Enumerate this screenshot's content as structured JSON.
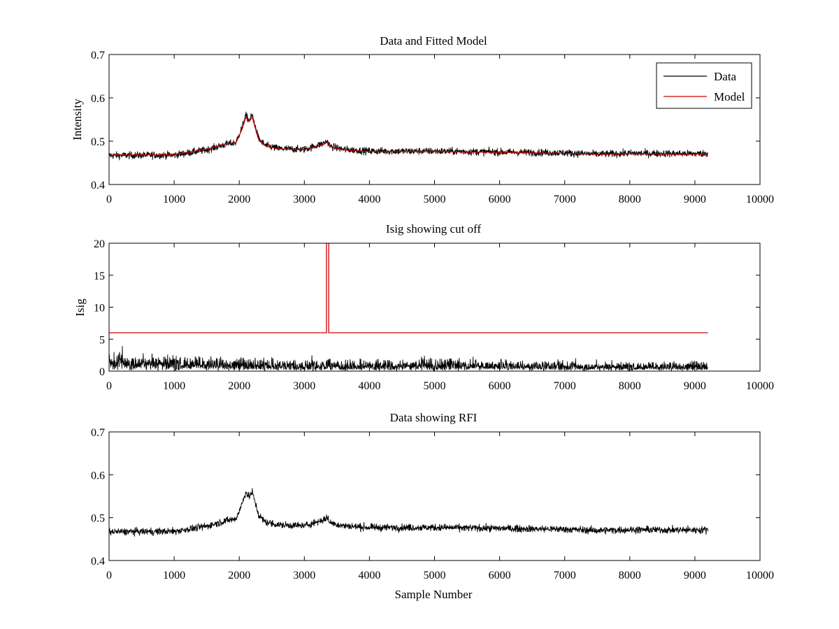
{
  "figure": {
    "background": "#ffffff"
  },
  "chart_data": [
    {
      "type": "line",
      "title": "Data and Fitted Model",
      "xlabel": "",
      "ylabel": "Intensity",
      "xlim": [
        0,
        10000
      ],
      "ylim": [
        0.4,
        0.7
      ],
      "xticks": [
        "0",
        "1000",
        "2000",
        "3000",
        "4000",
        "5000",
        "6000",
        "7000",
        "8000",
        "9000",
        "10000"
      ],
      "yticks": [
        "0.4",
        "0.5",
        "0.6",
        "0.7"
      ],
      "xtick_values": [
        0,
        1000,
        2000,
        3000,
        4000,
        5000,
        6000,
        7000,
        8000,
        9000,
        10000
      ],
      "ytick_values": [
        0.4,
        0.5,
        0.6,
        0.7
      ],
      "grid": false,
      "legend": {
        "position": "top-right",
        "entries": [
          {
            "label": "Data",
            "color": "#000000"
          },
          {
            "label": "Model",
            "color": "#cc0000"
          }
        ]
      },
      "series": [
        {
          "name": "Data",
          "color": "#000000",
          "kind": "noisy",
          "x": [
            0,
            1000,
            1500,
            1800,
            1950,
            2050,
            2100,
            2150,
            2200,
            2250,
            2300,
            2400,
            2600,
            3000,
            3300,
            3350,
            3400,
            3600,
            4000,
            5000,
            6000,
            7000,
            7500,
            8000,
            9000,
            9200
          ],
          "y": [
            0.467,
            0.468,
            0.48,
            0.493,
            0.497,
            0.535,
            0.56,
            0.548,
            0.56,
            0.532,
            0.505,
            0.49,
            0.483,
            0.481,
            0.495,
            0.5,
            0.488,
            0.481,
            0.477,
            0.477,
            0.475,
            0.473,
            0.47,
            0.472,
            0.471,
            0.472
          ],
          "noise": 0.006
        },
        {
          "name": "Model",
          "color": "#cc0000",
          "kind": "line",
          "x": [
            0,
            1000,
            1500,
            1800,
            1950,
            2050,
            2100,
            2150,
            2200,
            2250,
            2300,
            2400,
            2600,
            3000,
            3300,
            3350,
            3400,
            3600,
            4000,
            5000,
            6000,
            7000,
            7500,
            8000,
            9000,
            9200
          ],
          "y": [
            0.468,
            0.469,
            0.482,
            0.494,
            0.496,
            0.53,
            0.555,
            0.545,
            0.555,
            0.528,
            0.503,
            0.489,
            0.482,
            0.48,
            0.493,
            0.498,
            0.487,
            0.48,
            0.476,
            0.476,
            0.474,
            0.472,
            0.47,
            0.471,
            0.47,
            0.471
          ]
        }
      ]
    },
    {
      "type": "line",
      "title": "Isig showing cut off",
      "xlabel": "",
      "ylabel": "Isig",
      "xlim": [
        0,
        10000
      ],
      "ylim": [
        0,
        20
      ],
      "xticks": [
        "0",
        "1000",
        "2000",
        "3000",
        "4000",
        "5000",
        "6000",
        "7000",
        "8000",
        "9000",
        "10000"
      ],
      "yticks": [
        "0",
        "5",
        "10",
        "15",
        "20"
      ],
      "xtick_values": [
        0,
        1000,
        2000,
        3000,
        4000,
        5000,
        6000,
        7000,
        8000,
        9000,
        10000
      ],
      "ytick_values": [
        0,
        5,
        10,
        15,
        20
      ],
      "grid": false,
      "series": [
        {
          "color": "#000000",
          "kind": "spiky",
          "x": [
            0,
            1000,
            2000,
            3000,
            3500,
            4000,
            5000,
            6000,
            7000,
            8000,
            9200
          ],
          "y": [
            2.0,
            1.6,
            1.2,
            1.0,
            1.2,
            1.1,
            1.3,
            1.1,
            1.0,
            0.9,
            0.9
          ]
        },
        {
          "color": "#cc0000",
          "kind": "line",
          "x": [
            0,
            3340,
            3340,
            3375,
            3375,
            9200
          ],
          "y": [
            6,
            6,
            20,
            20,
            6,
            6
          ]
        }
      ]
    },
    {
      "type": "line",
      "title": "Data showing RFI",
      "xlabel": "Sample Number",
      "ylabel": "",
      "xlim": [
        0,
        10000
      ],
      "ylim": [
        0.4,
        0.7
      ],
      "xticks": [
        "0",
        "1000",
        "2000",
        "3000",
        "4000",
        "5000",
        "6000",
        "7000",
        "8000",
        "9000",
        "10000"
      ],
      "yticks": [
        "0.4",
        "0.5",
        "0.6",
        "0.7"
      ],
      "xtick_values": [
        0,
        1000,
        2000,
        3000,
        4000,
        5000,
        6000,
        7000,
        8000,
        9000,
        10000
      ],
      "ytick_values": [
        0.4,
        0.5,
        0.6,
        0.7
      ],
      "grid": false,
      "series": [
        {
          "color": "#000000",
          "kind": "noisy",
          "x": [
            0,
            1000,
            1500,
            1800,
            1950,
            2050,
            2100,
            2150,
            2200,
            2250,
            2300,
            2400,
            2600,
            3000,
            3300,
            3350,
            3400,
            3600,
            4000,
            5000,
            6000,
            7000,
            7500,
            8000,
            9000,
            9200
          ],
          "y": [
            0.467,
            0.468,
            0.48,
            0.493,
            0.497,
            0.535,
            0.56,
            0.548,
            0.56,
            0.532,
            0.505,
            0.49,
            0.483,
            0.481,
            0.495,
            0.5,
            0.488,
            0.481,
            0.477,
            0.477,
            0.475,
            0.473,
            0.47,
            0.472,
            0.471,
            0.472
          ],
          "noise": 0.006
        }
      ]
    }
  ]
}
